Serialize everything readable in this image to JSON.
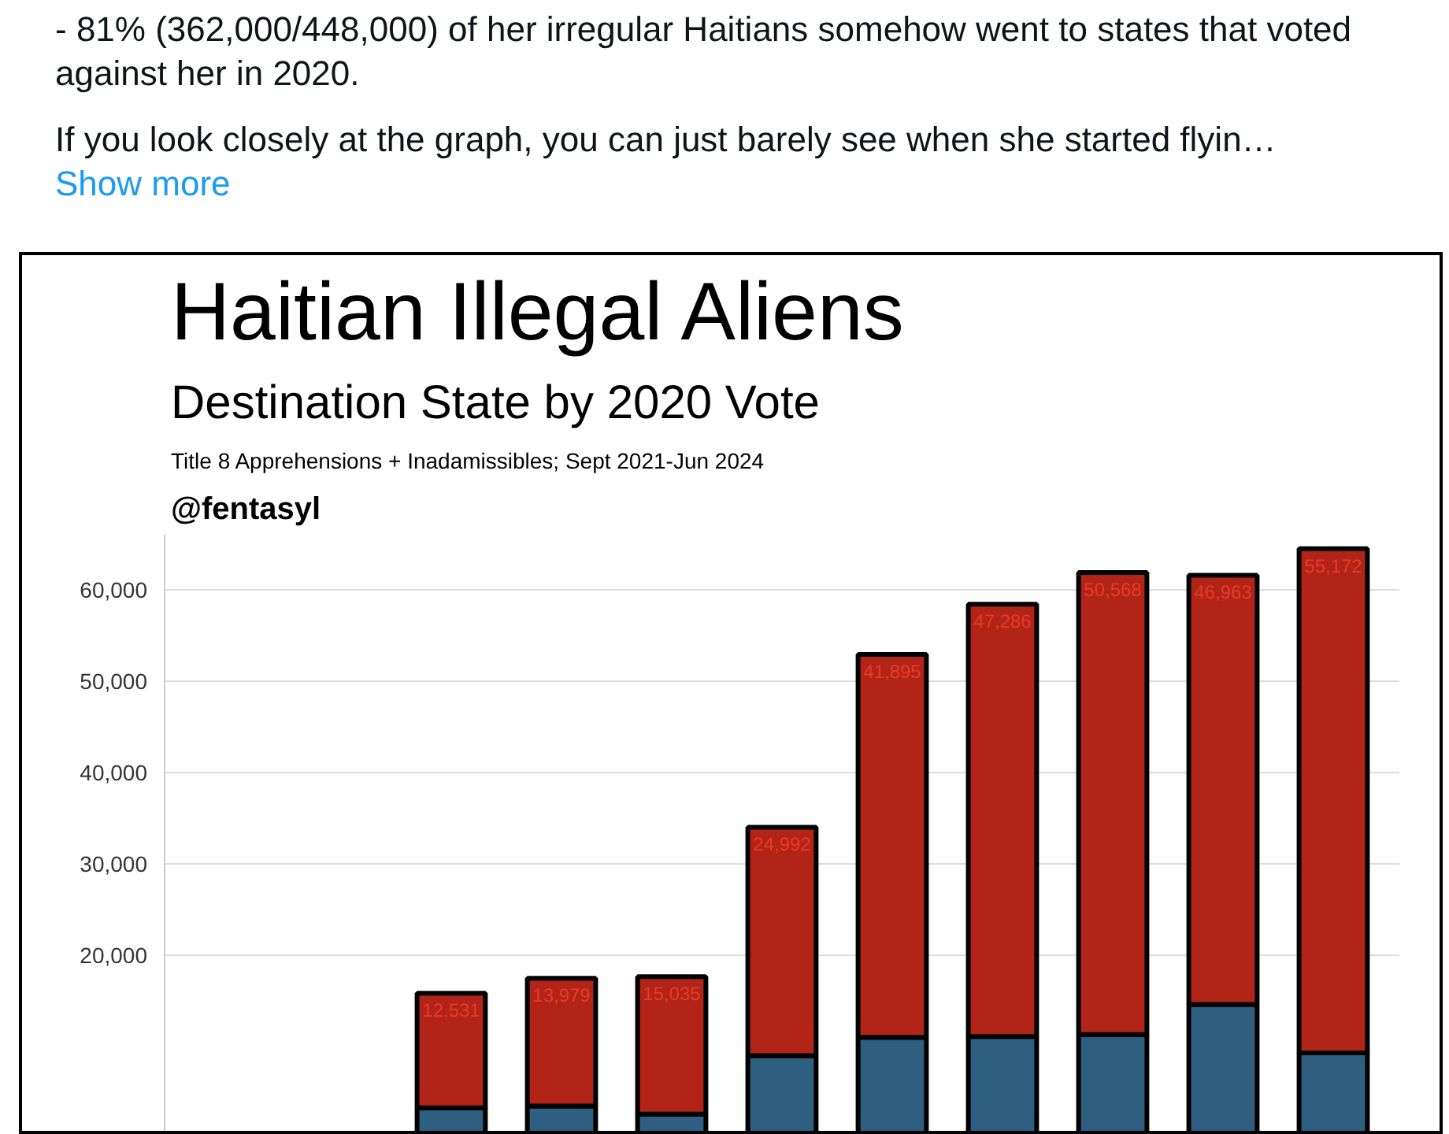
{
  "chart_data": {
    "type": "bar",
    "title": "Haitian Illegal Aliens",
    "subtitle": "Destination State by 2020 Vote",
    "annotations": [
      "- 81% (362,000/448,000) of her irregular Haitians somehow went to states that voted against her in 2020.",
      "If you look closely at the graph, you can just barely see when she started flyin…",
      "Show more",
      "Title 8 Apprehensions + Inadamissibles; Sept 2021-Jun 2024",
      "@fentasyl"
    ],
    "categories": [
      null,
      null,
      null,
      null,
      null,
      null,
      null,
      null,
      null,
      null,
      null
    ],
    "stacked": true,
    "series": [
      {
        "color": "#2e5f80",
        "values": [
          null,
          null,
          3300,
          3500,
          2600,
          9000,
          11000,
          11100,
          11300,
          14600,
          9300
        ]
      },
      {
        "color": "#b22418",
        "values": [
          null,
          null,
          12531,
          13979,
          15035,
          24992,
          41895,
          47286,
          50568,
          46963,
          55172
        ],
        "value_labels": [
          null,
          null,
          "12,531",
          "13,979",
          "15,035",
          "24,992",
          "41,895",
          "47,286",
          "50,568",
          "46,963",
          "55,172"
        ]
      }
    ],
    "ylim": [
      0,
      66000
    ],
    "yticks": [
      {
        "value": 20000,
        "label": "20,000"
      },
      {
        "value": 30000,
        "label": "30,000"
      },
      {
        "value": 40000,
        "label": "40,000"
      },
      {
        "value": 50000,
        "label": "50,000"
      },
      {
        "value": 60000,
        "label": "60,000"
      }
    ],
    "grid": "y"
  }
}
